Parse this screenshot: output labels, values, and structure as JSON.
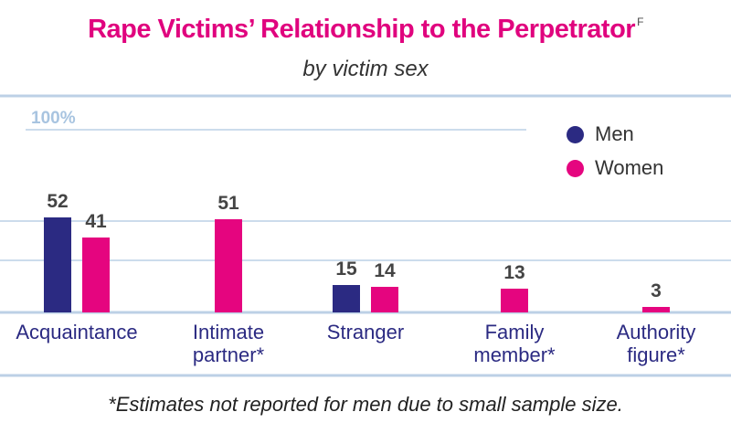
{
  "title": "Rape Victims’ Relationship to the Perpetrator",
  "title_note": "F",
  "subtitle": "by victim sex",
  "footnote": "*Estimates not reported for men due to small sample size.",
  "colors": {
    "men": "#2b2a82",
    "women": "#e5057f",
    "grid": "#bcd0e6",
    "axis_label": "#2b2a82",
    "value_label": "#444444"
  },
  "legend": [
    {
      "label": "Men",
      "color": "#2b2a82"
    },
    {
      "label": "Women",
      "color": "#e5057f"
    }
  ],
  "chart_data": {
    "type": "bar",
    "title": "Rape Victims’ Relationship to the Perpetrator",
    "subtitle": "by victim sex",
    "categories": [
      [
        "Acquaintance"
      ],
      [
        "Intimate",
        "partner*"
      ],
      [
        "Stranger"
      ],
      [
        "Family",
        "member*"
      ],
      [
        "Authority",
        "figure*"
      ]
    ],
    "series": [
      {
        "name": "Men",
        "values": [
          52,
          null,
          15,
          null,
          null
        ]
      },
      {
        "name": "Women",
        "values": [
          41,
          51,
          14,
          13,
          3
        ]
      }
    ],
    "ymax_label": "100%",
    "ylim": [
      0,
      100
    ],
    "gridlines": [
      50,
      100
    ],
    "xlabel": "",
    "ylabel": ""
  }
}
